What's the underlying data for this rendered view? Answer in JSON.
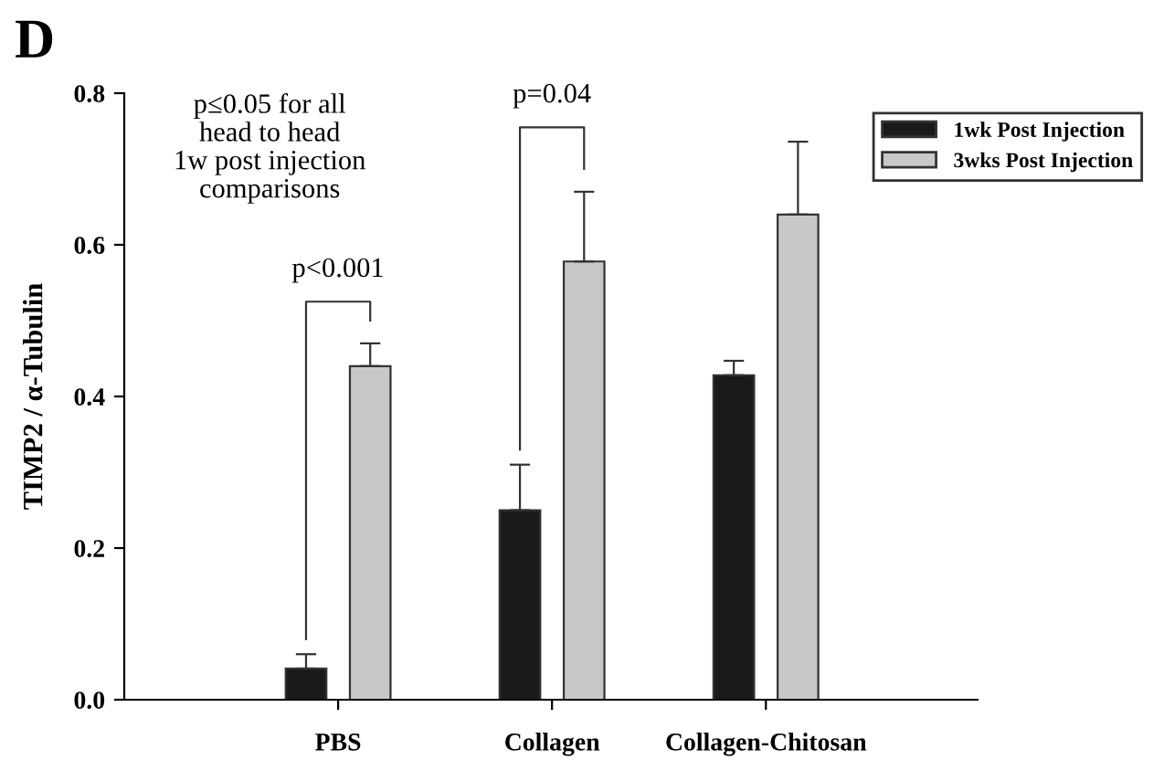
{
  "chart_data": {
    "type": "bar",
    "ylabel": "TIMP2 / α-Tubulin",
    "categories": [
      "PBS",
      "Collagen",
      "Collagen-Chitosan"
    ],
    "series": [
      {
        "name": "1wk Post Injection",
        "color": "#1a1a1a",
        "values": [
          0.041,
          0.25,
          0.428
        ],
        "errors": [
          [
            0.041,
            0.06
          ],
          [
            0.25,
            0.31
          ],
          [
            0.428,
            0.447
          ]
        ]
      },
      {
        "name": "3wks Post Injection",
        "color": "#c8c8c8",
        "values": [
          0.44,
          0.578,
          0.64
        ],
        "errors": [
          [
            0.44,
            0.47
          ],
          [
            0.578,
            0.67
          ],
          [
            0.64,
            0.736
          ]
        ]
      }
    ],
    "ylim": [
      0,
      0.8
    ],
    "yticks": [
      {
        "value": 0,
        "label": "0.0"
      },
      0.2,
      0.4,
      0.6,
      0.8
    ],
    "grid": false,
    "legend": "top right",
    "annotations": [
      "D",
      "p≤0.05 for all\nhead to head\n1w post injection\ncomparisons",
      "p<0.001",
      "p=0.04"
    ]
  }
}
